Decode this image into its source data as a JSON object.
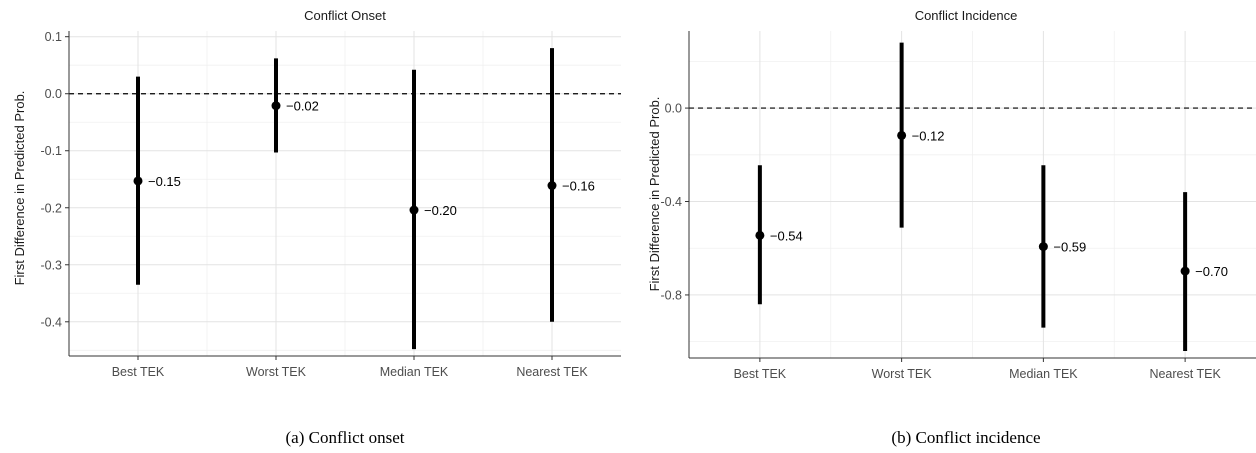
{
  "chart_data": [
    {
      "type": "pointrange",
      "title": "Conflict Onset",
      "ylabel": "First Difference in Predicted Prob.",
      "caption": "(a)  Conflict onset",
      "categories": [
        "Best TEK",
        "Worst TEK",
        "Median TEK",
        "Nearest TEK"
      ],
      "estimates": [
        -0.153,
        -0.021,
        -0.204,
        -0.161
      ],
      "labels": [
        "−0.15",
        "−0.02",
        "−0.20",
        "−0.16"
      ],
      "lower": [
        -0.335,
        -0.103,
        -0.448,
        -0.4
      ],
      "upper": [
        0.03,
        0.062,
        0.042,
        0.08
      ],
      "yticks": [
        0.1,
        0.0,
        -0.1,
        -0.2,
        -0.3,
        -0.4
      ],
      "ytick_labels": [
        "0.1",
        "0.0",
        "-0.1",
        "-0.2",
        "-0.3",
        "-0.4"
      ],
      "ylim": [
        -0.46,
        0.11
      ],
      "reference_line": 0,
      "grid": true
    },
    {
      "type": "pointrange",
      "title": "Conflict Incidence",
      "ylabel": "First Difference in Predicted Prob.",
      "caption": "(b)  Conflict incidence",
      "categories": [
        "Best TEK",
        "Worst TEK",
        "Median TEK",
        "Nearest TEK"
      ],
      "estimates": [
        -0.545,
        -0.117,
        -0.593,
        -0.698
      ],
      "labels": [
        "−0.54",
        "−0.12",
        "−0.59",
        "−0.70"
      ],
      "lower": [
        -0.84,
        -0.512,
        -0.94,
        -1.04
      ],
      "upper": [
        -0.245,
        0.28,
        -0.245,
        -0.36
      ],
      "yticks": [
        0.0,
        -0.4,
        -0.8
      ],
      "ytick_labels": [
        "0.0",
        "-0.4",
        "-0.8"
      ],
      "ylim": [
        -1.07,
        0.33
      ],
      "reference_line": 0,
      "grid": true
    }
  ]
}
